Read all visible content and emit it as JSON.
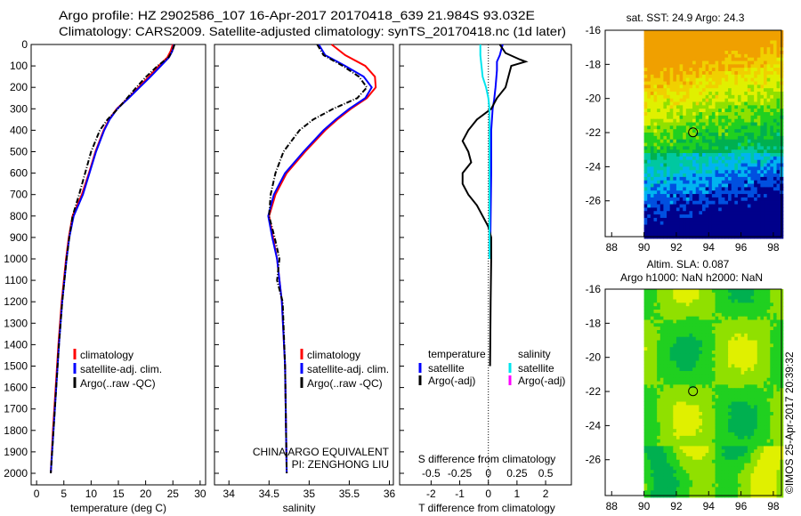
{
  "title_line1": "Argo profile: HZ 2902586_107 16-Apr-2017 20170418_639 21.984S 93.032E",
  "title_line2": "Climatology: CARS2009. Satellite-adjusted climatology: synTS_20170418.nc (1d later)",
  "side_label": "©IMOS 25-Apr-2017 20:39:32",
  "colors": {
    "climatology": "#ff0000",
    "satellite": "#0000ff",
    "argo": "#000000",
    "sal_sat": "#00e5ee",
    "sal_argo": "#ff00ff"
  },
  "chart_data": [
    {
      "type": "line",
      "xlabel": "temperature (deg C)",
      "ylabel": "depth",
      "xlim": [
        -1,
        31
      ],
      "ylim": [
        2100,
        0
      ],
      "xticks": [
        "0",
        "5",
        "10",
        "15",
        "20",
        "25",
        "30"
      ],
      "yticks": [
        "0",
        "100",
        "200",
        "300",
        "400",
        "500",
        "600",
        "700",
        "800",
        "900",
        "1000",
        "1100",
        "1200",
        "1300",
        "1400",
        "1500",
        "1600",
        "1700",
        "1800",
        "1900",
        "2000"
      ],
      "legend": [
        "climatology",
        "satellite-adj. clim.",
        "Argo(..raw -QC)"
      ],
      "series": [
        {
          "name": "climatology",
          "depth": [
            0,
            30,
            60,
            100,
            150,
            200,
            250,
            300,
            350,
            400,
            500,
            600,
            700,
            800,
            900,
            1000,
            1200,
            1400,
            1600,
            1800,
            2000,
            2060
          ],
          "values": [
            25.0,
            24.6,
            24.0,
            22.4,
            20.6,
            18.7,
            16.8,
            14.7,
            13.3,
            12.3,
            10.8,
            9.6,
            8.3,
            6.6,
            5.9,
            5.4,
            4.6,
            4.0,
            3.5,
            3.0,
            2.6,
            2.5
          ]
        },
        {
          "name": "satellite-adj. clim.",
          "depth": [
            0,
            30,
            60,
            100,
            150,
            200,
            250,
            300,
            350,
            400,
            500,
            600,
            700,
            800,
            900,
            1000,
            1200,
            1400,
            1600,
            1800,
            2000,
            2060
          ],
          "values": [
            25.2,
            24.9,
            24.3,
            22.8,
            20.9,
            18.9,
            16.9,
            14.8,
            13.4,
            12.4,
            10.9,
            9.7,
            8.5,
            6.8,
            6.0,
            5.5,
            4.7,
            4.1,
            3.6,
            3.1,
            2.6,
            2.5
          ]
        },
        {
          "name": "Argo(..raw -QC)",
          "depth": [
            0,
            30,
            60,
            100,
            150,
            200,
            250,
            300,
            350,
            400,
            500,
            600,
            700,
            800,
            900,
            1000,
            1200,
            1400,
            1600,
            1800,
            2000,
            2060
          ],
          "values": [
            25.3,
            24.9,
            24.2,
            22.2,
            20.1,
            18.3,
            16.6,
            14.9,
            13.0,
            11.6,
            10.0,
            8.9,
            7.8,
            6.6,
            6.0,
            5.5,
            4.7,
            4.1,
            3.6,
            3.1,
            2.6,
            2.5
          ]
        }
      ]
    },
    {
      "type": "line",
      "xlabel": "salinity",
      "ylabel": "depth",
      "xlim": [
        33.82,
        36.05
      ],
      "ylim": [
        2100,
        0
      ],
      "xticks": [
        "34",
        "34.5",
        "35",
        "35.5",
        "36"
      ],
      "legend": [
        "climatology",
        "satellite-adj. clim.",
        "Argo(..raw -QC)"
      ],
      "annotation": [
        "CHINA ARGO EQUIVALENT",
        "PI: ZENGHONG LIU"
      ],
      "series": [
        {
          "name": "climatology",
          "depth": [
            0,
            50,
            100,
            150,
            200,
            250,
            300,
            350,
            400,
            500,
            600,
            700,
            800,
            900,
            1000,
            1200,
            1500,
            2000,
            2060
          ],
          "values": [
            35.28,
            35.45,
            35.7,
            35.82,
            35.83,
            35.72,
            35.52,
            35.35,
            35.2,
            34.95,
            34.72,
            34.58,
            34.5,
            34.55,
            34.6,
            34.66,
            34.7,
            34.72,
            34.72
          ]
        },
        {
          "name": "satellite-adj. clim.",
          "depth": [
            0,
            50,
            100,
            150,
            200,
            250,
            300,
            350,
            400,
            500,
            600,
            700,
            800,
            900,
            1000,
            1200,
            1500,
            2000,
            2060
          ],
          "values": [
            35.12,
            35.2,
            35.45,
            35.68,
            35.78,
            35.7,
            35.5,
            35.33,
            35.18,
            34.93,
            34.7,
            34.56,
            34.49,
            34.54,
            34.6,
            34.66,
            34.7,
            34.72,
            34.72
          ]
        },
        {
          "name": "Argo(..raw -QC)",
          "depth": [
            0,
            50,
            100,
            150,
            200,
            250,
            300,
            350,
            400,
            500,
            600,
            700,
            800,
            900,
            1000,
            1100,
            1200,
            1500,
            2000,
            2060
          ],
          "values": [
            35.1,
            35.18,
            35.42,
            35.62,
            35.72,
            35.6,
            35.3,
            35.05,
            34.88,
            34.68,
            34.58,
            34.52,
            34.5,
            34.57,
            34.63,
            34.6,
            34.67,
            34.7,
            34.72,
            34.72
          ]
        }
      ]
    },
    {
      "type": "line",
      "xlabel": "T difference from climatology",
      "xlabel2": "S difference from climatology",
      "xlim": [
        -3.1,
        2.9
      ],
      "ylim": [
        2100,
        0
      ],
      "xticks": [
        "-2",
        "-1",
        "0",
        "1",
        "2"
      ],
      "xticks2": [
        "-0.5",
        "-0.25",
        "0",
        "0.25",
        "0.5"
      ],
      "legend_temp_title": "temperature",
      "legend_sal_title": "salinity",
      "legend_temp": [
        "satellite",
        "Argo(-adj)"
      ],
      "legend_sal": [
        "satellite",
        "Argo(-adj)"
      ],
      "series": [
        {
          "name": "T satellite",
          "depth": [
            0,
            50,
            80,
            120,
            200,
            260,
            300,
            400,
            600,
            800,
            1000,
            2060
          ],
          "values": [
            0.5,
            0.4,
            0.3,
            0.3,
            0.25,
            0.2,
            0.15,
            0.1,
            0.1,
            0.08,
            0.06,
            0.05
          ]
        },
        {
          "name": "T Argo(-adj)",
          "depth": [
            0,
            40,
            70,
            80,
            100,
            150,
            200,
            250,
            300,
            350,
            400,
            450,
            500,
            550,
            600,
            650,
            700,
            750,
            800,
            850,
            900,
            1000,
            1200,
            1500,
            2060
          ],
          "values": [
            0.4,
            0.6,
            1.1,
            1.3,
            0.8,
            0.7,
            0.6,
            0.3,
            0.1,
            -0.4,
            -0.7,
            -0.9,
            -0.7,
            -0.6,
            -0.9,
            -0.9,
            -0.7,
            -0.4,
            -0.2,
            0,
            0.1,
            0.1,
            0.08,
            0.06,
            0.05
          ]
        },
        {
          "name": "S satellite",
          "depth": [
            0,
            50,
            100,
            150,
            200,
            250,
            300,
            400,
            600,
            800,
            1000,
            2060
          ],
          "values": [
            -0.07,
            -0.07,
            -0.06,
            -0.05,
            -0.02,
            0,
            0.01,
            0.01,
            0.01,
            0.01,
            0.01,
            0.01
          ]
        }
      ]
    },
    {
      "type": "heatmap",
      "title": "sat. SST: 24.9 Argo: 24.3",
      "xticks": [
        "88",
        "90",
        "92",
        "94",
        "96",
        "98"
      ],
      "yticks": [
        "-16",
        "-18",
        "-20",
        "-22",
        "-24",
        "-26"
      ],
      "xlim": [
        87.6,
        98.5
      ],
      "ylim": [
        -28.1,
        -16
      ],
      "marker": [
        93.032,
        -21.984
      ]
    },
    {
      "type": "heatmap",
      "title": "Altim. SLA: 0.087",
      "title2": "Argo h1000: NaN h2000: NaN",
      "xticks": [
        "88",
        "90",
        "92",
        "94",
        "96",
        "98"
      ],
      "yticks": [
        "-16",
        "-18",
        "-20",
        "-22",
        "-24",
        "-26"
      ],
      "xlim": [
        87.6,
        98.5
      ],
      "ylim": [
        -28.1,
        -16
      ],
      "marker": [
        93.032,
        -21.984
      ]
    }
  ]
}
